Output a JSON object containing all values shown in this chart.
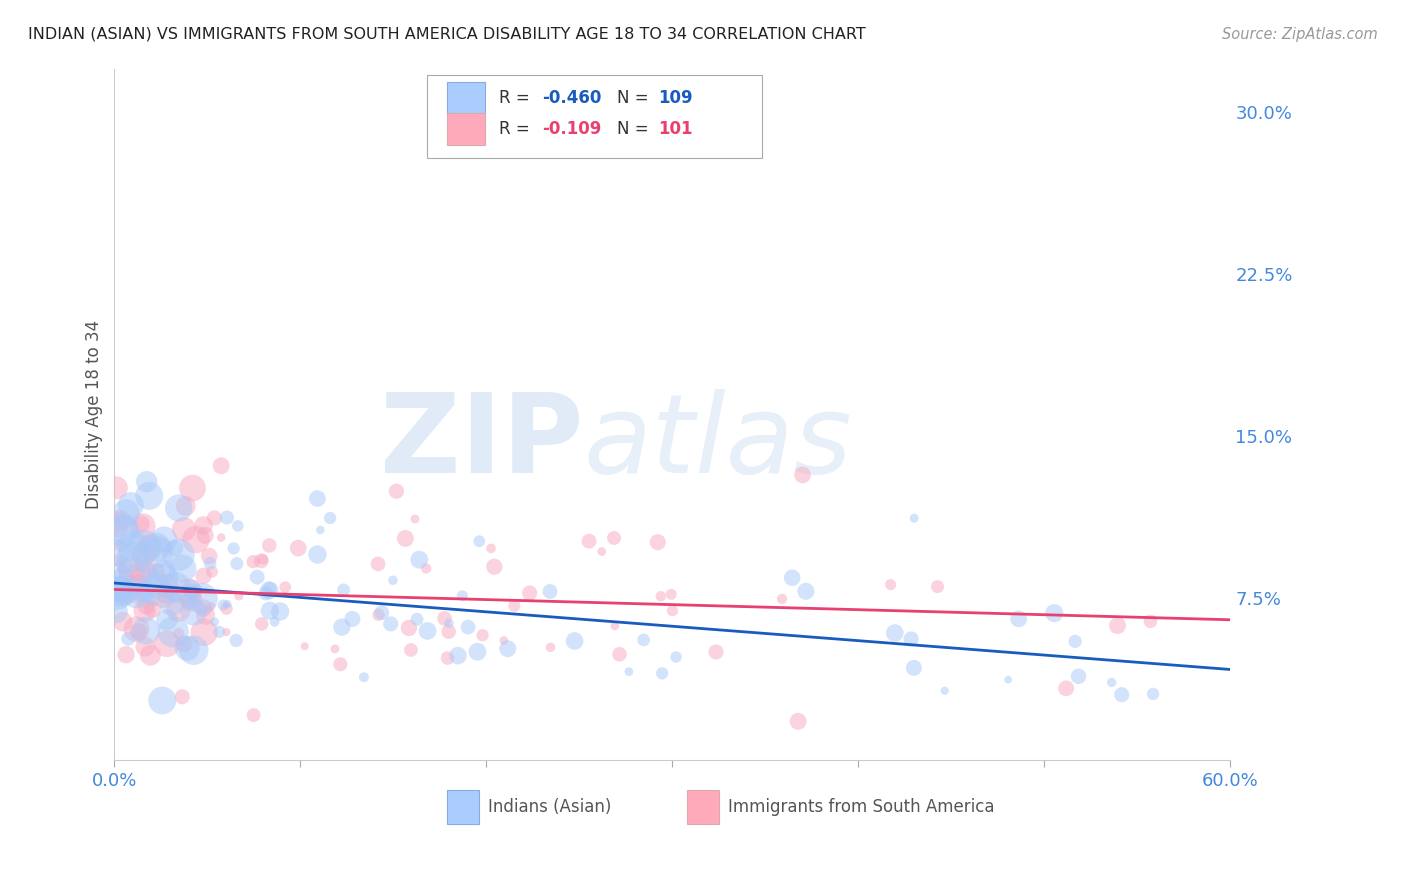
{
  "title": "INDIAN (ASIAN) VS IMMIGRANTS FROM SOUTH AMERICA DISABILITY AGE 18 TO 34 CORRELATION CHART",
  "source": "Source: ZipAtlas.com",
  "ylabel": "Disability Age 18 to 34",
  "xlim": [
    0.0,
    0.6
  ],
  "ylim": [
    0.0,
    0.32
  ],
  "yticks": [
    0.075,
    0.15,
    0.225,
    0.3
  ],
  "ytick_labels": [
    "7.5%",
    "15.0%",
    "22.5%",
    "30.0%"
  ],
  "xticks": [
    0.0,
    0.1,
    0.2,
    0.3,
    0.4,
    0.5,
    0.6
  ],
  "xtick_labels": [
    "0.0%",
    "",
    "",
    "",
    "",
    "",
    "60.0%"
  ],
  "series1_color": "#A8C8F8",
  "series2_color": "#F8A8C0",
  "line1_color": "#1A5BBF",
  "line2_color": "#E84070",
  "watermark_zip": "ZIP",
  "watermark_atlas": "atlas",
  "background_color": "#FFFFFF",
  "grid_color": "#CCCCCC",
  "tick_color": "#4488DD",
  "legend_R1": "R = ",
  "legend_V1": "-0.460",
  "legend_N1_label": "N = ",
  "legend_N1": "109",
  "legend_R2": "R = ",
  "legend_V2": "-0.109",
  "legend_N2_label": "N = ",
  "legend_N2": "101",
  "seed": 12345,
  "n1": 109,
  "n2": 101
}
